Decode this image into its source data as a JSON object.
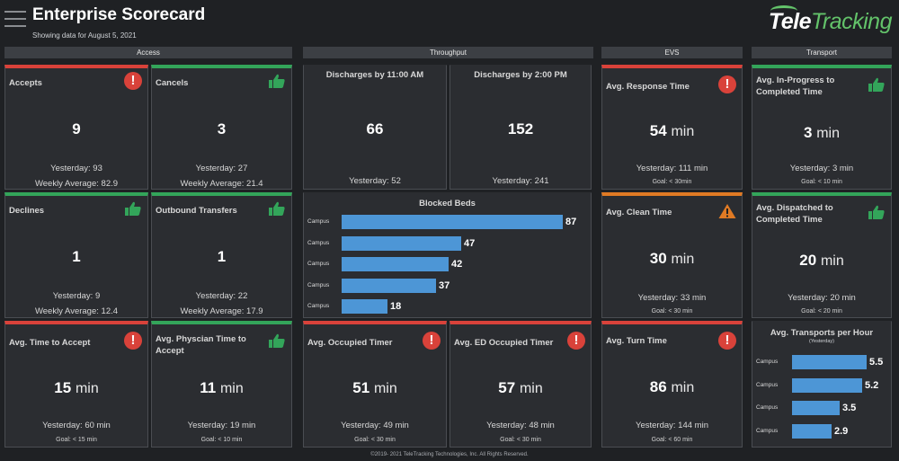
{
  "header": {
    "title": "Enterprise Scorecard",
    "subtitle": "Showing data for August 5, 2021",
    "logo_tele": "Tele",
    "logo_tracking": "Tracking"
  },
  "sections": {
    "access": "Access",
    "throughput": "Throughput",
    "evs": "EVS",
    "transport": "Transport"
  },
  "cards": {
    "accepts": {
      "label": "Accepts",
      "value": "9",
      "yesterday": "Yesterday: 93",
      "weekly": "Weekly Average: 82.9",
      "status": "red"
    },
    "cancels": {
      "label": "Cancels",
      "value": "3",
      "yesterday": "Yesterday: 27",
      "weekly": "Weekly Average: 21.4",
      "status": "green"
    },
    "declines": {
      "label": "Declines",
      "value": "1",
      "yesterday": "Yesterday: 9",
      "weekly": "Weekly Average: 12.4",
      "status": "green"
    },
    "outbound": {
      "label": "Outbound Transfers",
      "value": "1",
      "yesterday": "Yesterday: 22",
      "weekly": "Weekly Average: 17.9",
      "status": "green"
    },
    "time_to_accept": {
      "label": "Avg. Time to Accept",
      "value": "15",
      "unit": "min",
      "yesterday": "Yesterday: 60 min",
      "goal": "Goal: < 15 min",
      "status": "red"
    },
    "physician_time": {
      "label1": "Avg. Physcian Time to",
      "label2": "Accept",
      "value": "11",
      "unit": "min",
      "yesterday": "Yesterday: 19 min",
      "goal": "Goal: < 10 min",
      "status": "green"
    },
    "discharges_11": {
      "label": "Discharges by 11:00 AM",
      "value": "66",
      "yesterday": "Yesterday: 52"
    },
    "discharges_2": {
      "label": "Discharges by 2:00 PM",
      "value": "152",
      "yesterday": "Yesterday: 241"
    },
    "occupied_timer": {
      "label": "Avg. Occupied Timer",
      "value": "51",
      "unit": "min",
      "yesterday": "Yesterday: 49 min",
      "goal": "Goal: < 30 min",
      "status": "red"
    },
    "ed_occupied_timer": {
      "label": "Avg. ED Occupied Timer",
      "value": "57",
      "unit": "min",
      "yesterday": "Yesterday: 48 min",
      "goal": "Goal: < 30 min",
      "status": "red"
    },
    "response_time": {
      "label": "Avg. Response Time",
      "value": "54",
      "unit": "min",
      "yesterday": "Yesterday:  111 min",
      "goal": "Goal: < 30min",
      "status": "red"
    },
    "clean_time": {
      "label": "Avg. Clean Time",
      "value": "30",
      "unit": "min",
      "yesterday": "Yesterday: 33 min",
      "goal": "Goal: < 30 min",
      "status": "orange"
    },
    "turn_time": {
      "label": "Avg. Turn Time",
      "value": "86",
      "unit": "min",
      "yesterday": "Yesterday: 144 min",
      "goal": "Goal: < 60 min",
      "status": "red"
    },
    "in_progress": {
      "label1": "Avg. In-Progress to",
      "label2": "Completed Time",
      "value": "3",
      "unit": "min",
      "yesterday": "Yesterday: 3 min",
      "goal": "Goal: < 10 min",
      "status": "green"
    },
    "dispatched": {
      "label1": "Avg. Dispatched to",
      "label2": "Completed Time",
      "value": "20",
      "unit": "min",
      "yesterday": "Yesterday: 20 min",
      "goal": "Goal: < 20 min",
      "status": "green"
    }
  },
  "blocked_beds": {
    "title": "Blocked Beds",
    "rows": [
      {
        "label": "Campus",
        "value": 87
      },
      {
        "label": "Campus",
        "value": 47
      },
      {
        "label": "Campus",
        "value": 42
      },
      {
        "label": "Campus",
        "value": 37
      },
      {
        "label": "Campus",
        "value": 18
      }
    ]
  },
  "transports_per_hour": {
    "title": "Avg. Transports per Hour",
    "subtitle": "(Yesterday)",
    "rows": [
      {
        "label": "Campus",
        "value": 5.5
      },
      {
        "label": "Campus",
        "value": 5.2
      },
      {
        "label": "Campus",
        "value": 3.5
      },
      {
        "label": "Campus",
        "value": 2.9
      }
    ]
  },
  "chart_data": [
    {
      "type": "bar",
      "title": "Blocked Beds",
      "categories": [
        "Campus",
        "Campus",
        "Campus",
        "Campus",
        "Campus"
      ],
      "values": [
        87,
        47,
        42,
        37,
        18
      ]
    },
    {
      "type": "bar",
      "title": "Avg. Transports per Hour",
      "subtitle": "(Yesterday)",
      "categories": [
        "Campus",
        "Campus",
        "Campus",
        "Campus"
      ],
      "values": [
        5.5,
        5.2,
        3.5,
        2.9
      ]
    }
  ],
  "footer": "©2019- 2021 TeleTracking Technologies, Inc.  All Rights Reserved.",
  "colors": {
    "red": "#d9423a",
    "green": "#33a55a",
    "orange": "#e07a24",
    "bar": "#4d96d6"
  }
}
